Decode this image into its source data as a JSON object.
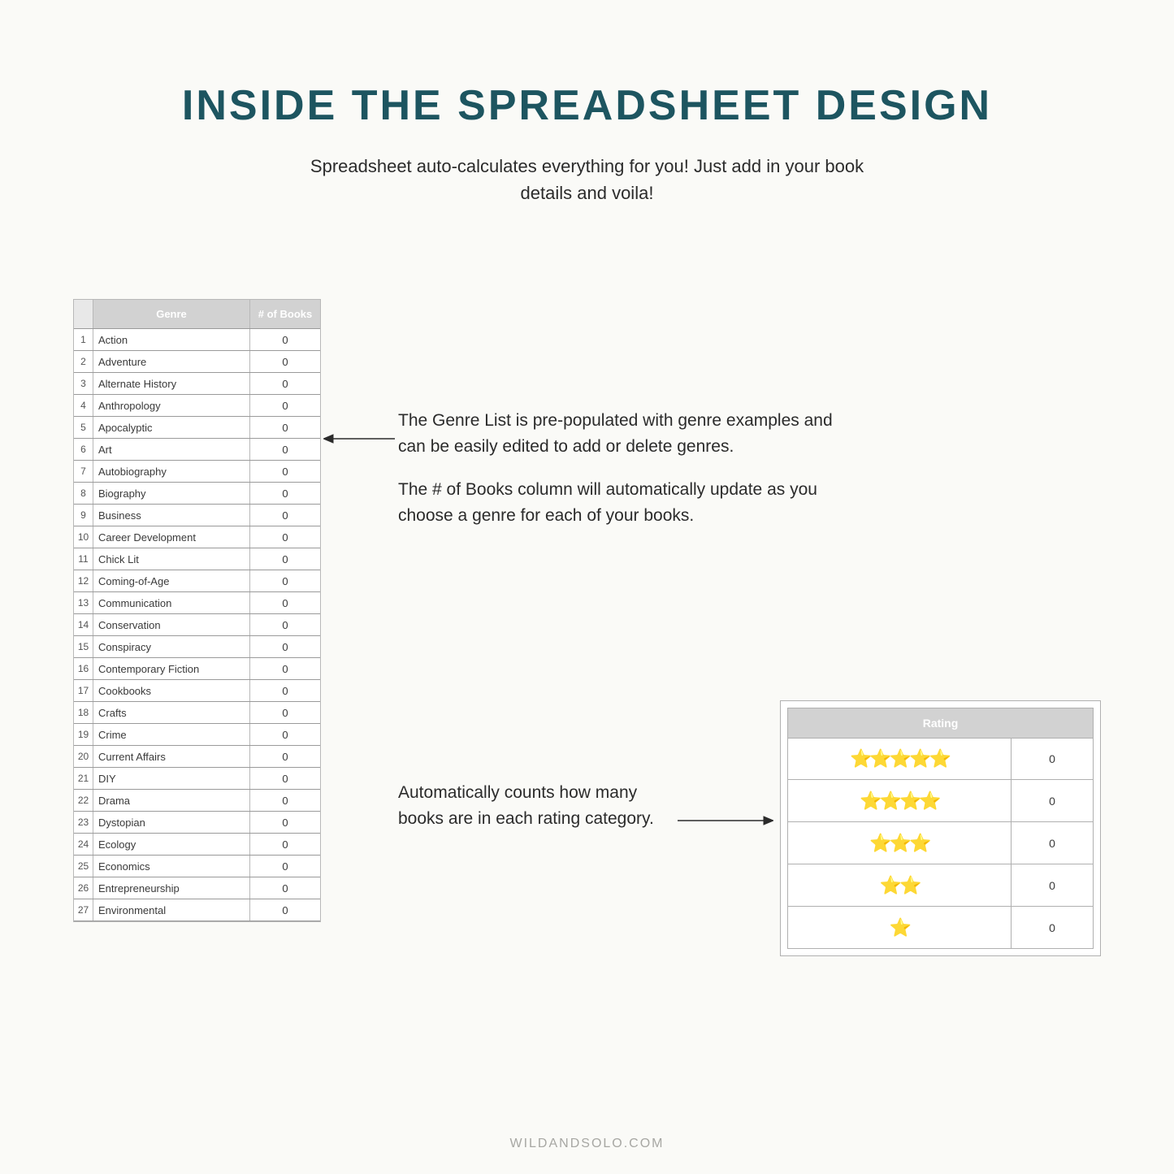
{
  "page": {
    "title": "INSIDE THE SPREADSHEET DESIGN",
    "subtitle": "Spreadsheet auto-calculates everything for you! Just add in your book details and voila!",
    "footer": "WILDANDSOLO.COM",
    "background_color": "#fafaf7",
    "title_color": "#1d5560"
  },
  "genre_table": {
    "type": "table",
    "header_genre": "Genre",
    "header_count": "# of Books",
    "header_bg": "#d2d2d2",
    "header_text_color": "#ffffff",
    "border_color": "#9a9a9a",
    "font_size": 13,
    "rows": [
      {
        "n": 1,
        "name": "Action",
        "count": 0
      },
      {
        "n": 2,
        "name": "Adventure",
        "count": 0
      },
      {
        "n": 3,
        "name": "Alternate History",
        "count": 0
      },
      {
        "n": 4,
        "name": "Anthropology",
        "count": 0
      },
      {
        "n": 5,
        "name": "Apocalyptic",
        "count": 0
      },
      {
        "n": 6,
        "name": "Art",
        "count": 0
      },
      {
        "n": 7,
        "name": "Autobiography",
        "count": 0
      },
      {
        "n": 8,
        "name": "Biography",
        "count": 0
      },
      {
        "n": 9,
        "name": "Business",
        "count": 0
      },
      {
        "n": 10,
        "name": "Career Development",
        "count": 0
      },
      {
        "n": 11,
        "name": "Chick Lit",
        "count": 0
      },
      {
        "n": 12,
        "name": "Coming-of-Age",
        "count": 0
      },
      {
        "n": 13,
        "name": "Communication",
        "count": 0
      },
      {
        "n": 14,
        "name": "Conservation",
        "count": 0
      },
      {
        "n": 15,
        "name": "Conspiracy",
        "count": 0
      },
      {
        "n": 16,
        "name": "Contemporary Fiction",
        "count": 0
      },
      {
        "n": 17,
        "name": "Cookbooks",
        "count": 0
      },
      {
        "n": 18,
        "name": "Crafts",
        "count": 0
      },
      {
        "n": 19,
        "name": "Crime",
        "count": 0
      },
      {
        "n": 20,
        "name": "Current Affairs",
        "count": 0
      },
      {
        "n": 21,
        "name": "DIY",
        "count": 0
      },
      {
        "n": 22,
        "name": "Drama",
        "count": 0
      },
      {
        "n": 23,
        "name": "Dystopian",
        "count": 0
      },
      {
        "n": 24,
        "name": "Ecology",
        "count": 0
      },
      {
        "n": 25,
        "name": "Economics",
        "count": 0
      },
      {
        "n": 26,
        "name": "Entrepreneurship",
        "count": 0
      },
      {
        "n": 27,
        "name": "Environmental",
        "count": 0
      }
    ]
  },
  "rating_table": {
    "type": "table",
    "header": "Rating",
    "header_bg": "#d2d2d2",
    "header_text_color": "#ffffff",
    "star_color": "#f5c518",
    "border_color": "#b0b0b0",
    "rows": [
      {
        "stars": 5,
        "count": 0
      },
      {
        "stars": 4,
        "count": 0
      },
      {
        "stars": 3,
        "count": 0
      },
      {
        "stars": 2,
        "count": 0
      },
      {
        "stars": 1,
        "count": 0
      }
    ]
  },
  "callouts": {
    "genre_p1": "The Genre List is pre-populated with genre examples and can be easily edited to add or delete genres.",
    "genre_p2": "The # of Books column will automatically update as you choose a genre for each of your books.",
    "rating": "Automatically counts how many books are in each rating category."
  },
  "arrows": {
    "color": "#2b2b2b",
    "stroke_width": 1.5
  }
}
